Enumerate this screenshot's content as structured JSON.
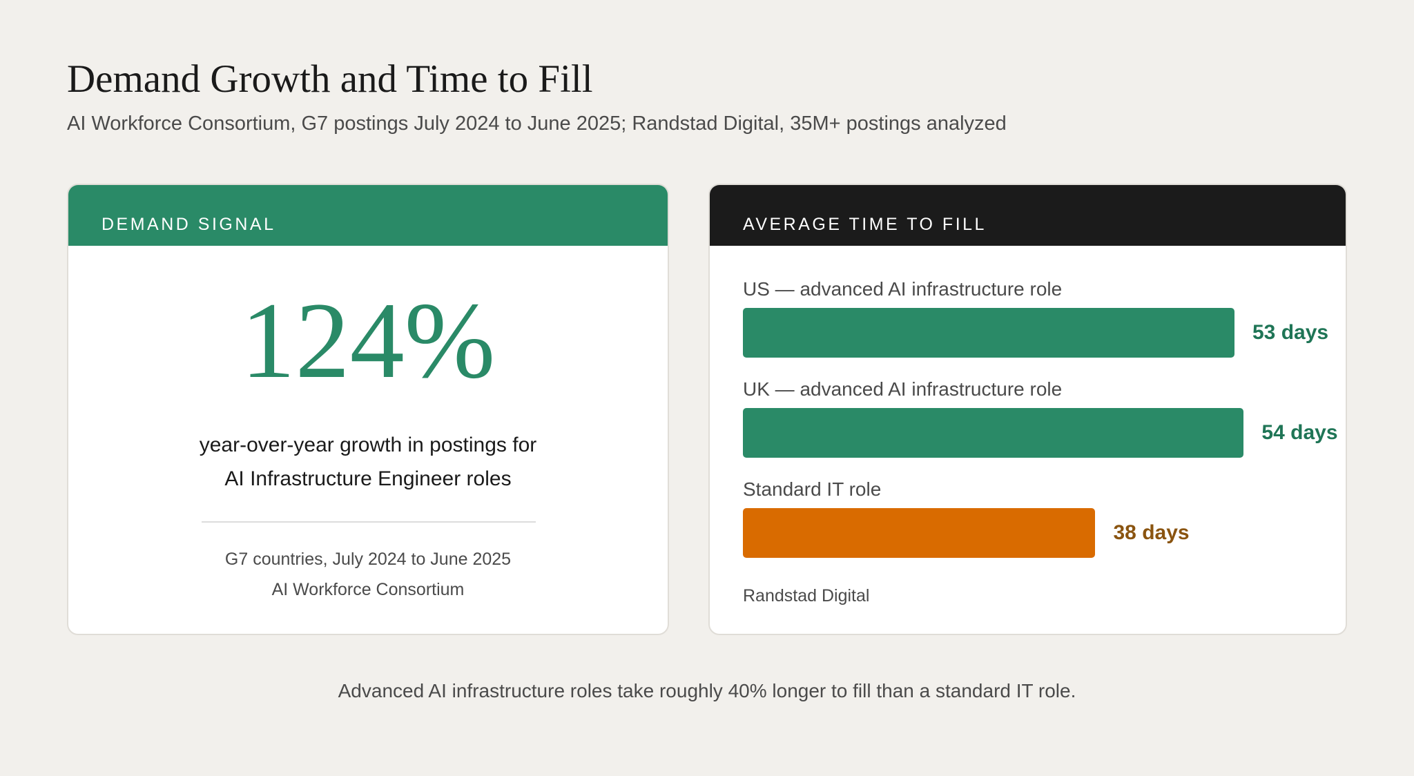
{
  "title": "Demand Growth and Time to Fill",
  "subtitle": "AI Workforce Consortium, G7 postings July 2024 to June 2025; Randstad Digital, 35M+ postings analyzed",
  "demand_card": {
    "header": "DEMAND SIGNAL",
    "stat": "124%",
    "description_lines": [
      "year-over-year growth in postings for",
      "AI Infrastructure Engineer roles"
    ],
    "note_lines": [
      "G7 countries, July 2024 to June 2025",
      "AI Workforce Consortium"
    ],
    "color": "#2a8a67"
  },
  "time_card": {
    "header": "AVERAGE TIME TO FILL",
    "source": "Randstad Digital"
  },
  "chart_data": {
    "type": "bar",
    "orientation": "horizontal",
    "categories": [
      "US — advanced AI infrastructure role",
      "UK — advanced AI infrastructure role",
      "Standard IT role"
    ],
    "values": [
      53,
      54,
      38
    ],
    "value_labels": [
      "53 days",
      "54 days",
      "38 days"
    ],
    "bar_colors": [
      "#2a8a67",
      "#2a8a67",
      "#d96b00"
    ],
    "label_colors": [
      "#1f7556",
      "#1f7556",
      "#8a5410"
    ],
    "unit": "days"
  },
  "footnote": "Advanced AI infrastructure roles take roughly 40% longer to fill than a standard IT role."
}
